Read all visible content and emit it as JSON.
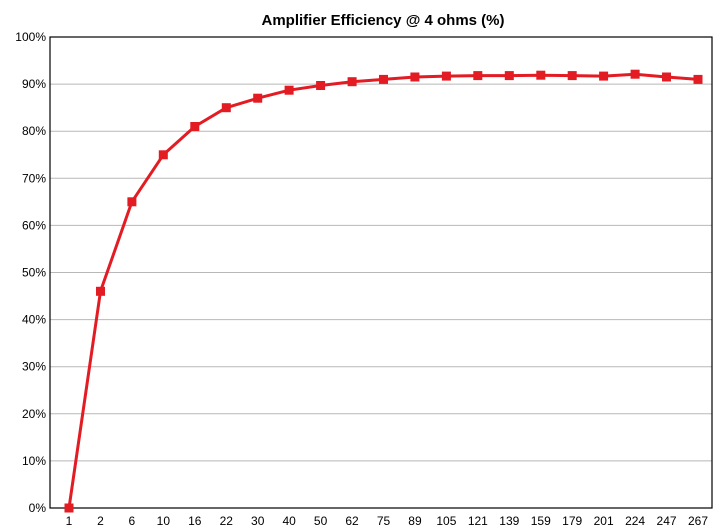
{
  "chart_data": {
    "type": "line",
    "title": "Amplifier Efficiency @ 4 ohms (%)",
    "xlabel": "",
    "ylabel": "",
    "categories": [
      "1",
      "2",
      "6",
      "10",
      "16",
      "22",
      "30",
      "40",
      "50",
      "62",
      "75",
      "89",
      "105",
      "121",
      "139",
      "159",
      "179",
      "201",
      "224",
      "247",
      "267"
    ],
    "series": [
      {
        "values": [
          0,
          46,
          65,
          75,
          81,
          85,
          87,
          88.7,
          89.7,
          90.5,
          91,
          91.5,
          91.7,
          91.8,
          91.8,
          91.9,
          91.8,
          91.7,
          92.1,
          91.5,
          91
        ]
      }
    ],
    "ylim": [
      0,
      100
    ],
    "y_ticks": [
      "0%",
      "10%",
      "20%",
      "30%",
      "40%",
      "50%",
      "60%",
      "70%",
      "80%",
      "90%",
      "100%"
    ],
    "grid": "horizontal",
    "legend": "none",
    "colors": {
      "series": "#e31b23",
      "grid": "#b8b8b8",
      "frame": "#000000"
    }
  }
}
